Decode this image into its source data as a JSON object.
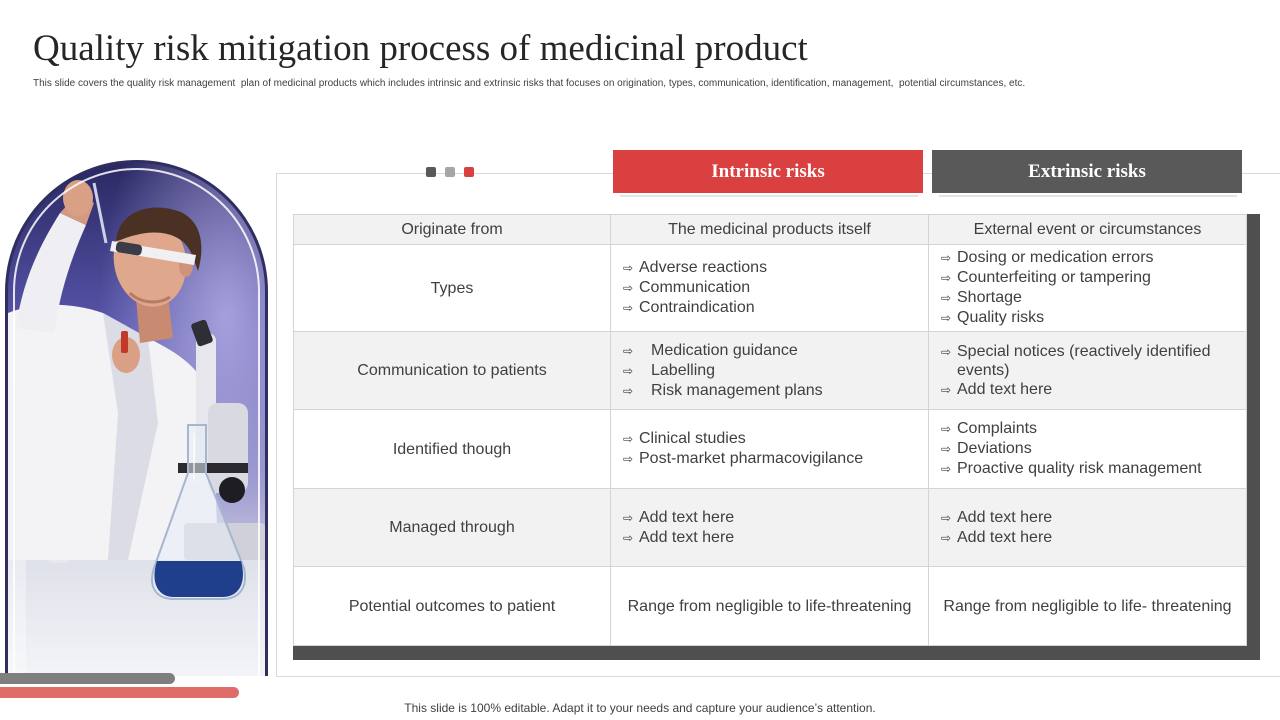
{
  "slide": {
    "title": "Quality risk mitigation process of medicinal product",
    "subtitle": "This slide covers the quality risk management  plan of medicinal products which includes intrinsic and extrinsic risks that focuses on origination, types, communication, identification, management,  potential circumstances, etc.",
    "footer": "This slide is 100% editable. Adapt it to your needs and capture your audience’s attention."
  },
  "colors": {
    "accent_red": "#d9403f",
    "dark_gray": "#595959",
    "light_gray": "#a6a6a6",
    "table_shadow": "#4f4f4f",
    "shaded_row": "#f2f2f2",
    "bar_gray": "#7f7f7f",
    "bar_red": "#e06c6a",
    "arch_border": "#2f2e5e"
  },
  "icons": {
    "bullet": "arrow-right-outline-icon",
    "bullet_glyph": "⇨",
    "pager_dots": [
      "dark-square-icon",
      "gray-square-icon",
      "red-square-icon"
    ]
  },
  "headers": {
    "intrinsic": "Intrinsic risks",
    "extrinsic": "Extrinsic risks"
  },
  "table": {
    "columns": [
      "Originate from",
      "The medicinal products itself",
      "External event or circumstances"
    ],
    "rows": [
      {
        "label": "Types",
        "intrinsic": [
          "Adverse reactions",
          "Communication",
          "Contraindication"
        ],
        "extrinsic": [
          "Dosing or medication errors",
          "Counterfeiting or tampering",
          "Shortage",
          "Quality risks"
        ]
      },
      {
        "label": "Communication to patients",
        "intrinsic": [
          "Medication guidance",
          "Labelling",
          "Risk management plans"
        ],
        "extrinsic": [
          "Special notices (reactively identified events)",
          "Add text here"
        ]
      },
      {
        "label": "Identified though",
        "intrinsic": [
          "Clinical studies",
          "Post-market pharmacovigilance"
        ],
        "extrinsic": [
          "Complaints",
          "Deviations",
          "Proactive quality risk management"
        ]
      },
      {
        "label": "Managed through",
        "intrinsic": [
          "Add text here",
          "Add text here"
        ],
        "extrinsic": [
          "Add text here",
          "Add text here"
        ]
      },
      {
        "label": "Potential outcomes to patient",
        "intrinsic_text": "Range from negligible to life-threatening",
        "extrinsic_text": "Range from negligible to life- threatening"
      }
    ]
  }
}
